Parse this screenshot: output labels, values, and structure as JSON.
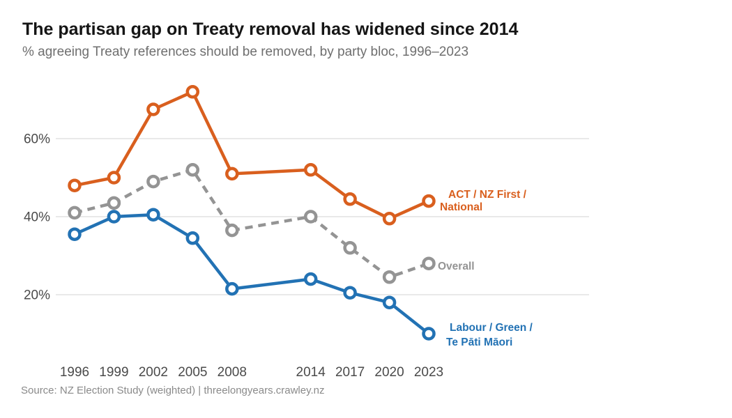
{
  "figure": {
    "title": "The partisan gap on Treaty removal has widened since 2014",
    "subtitle": "% agreeing Treaty references should be removed, by party bloc, 1996–2023",
    "source": "Source: NZ Election Study (weighted) | threelongyears.crawley.nz"
  },
  "colors": {
    "act_bloc": "#D95F1E",
    "overall": "#949494",
    "labour_bloc": "#2272B4",
    "gridline": "#E2E2E2",
    "title_text": "#151515",
    "subtitle_text": "#6E6E6E",
    "axis_text": "#4A4A4A",
    "source_text": "#8A8A8A",
    "marker_fill": "#FFFFFF"
  },
  "chart_data": {
    "type": "line",
    "title": "The partisan gap on Treaty removal has widened since 2014",
    "subtitle": "% agreeing Treaty references should be removed, by party bloc, 1996–2023",
    "source": "Source: NZ Election Study (weighted) | threelongyears.crawley.nz",
    "x": [
      1996,
      1999,
      2002,
      2005,
      2008,
      2014,
      2017,
      2020,
      2023
    ],
    "xtick_labels": [
      "1996",
      "1999",
      "2002",
      "2005",
      "2008",
      "2014",
      "2017",
      "2020",
      "2023"
    ],
    "yticks": [
      20,
      40,
      60
    ],
    "ytick_labels": [
      "20%",
      "40%",
      "60%"
    ],
    "ylim": [
      5,
      78
    ],
    "grid": "horizontal-only",
    "marker": "open-circle",
    "legend_position": "end-of-line-labels",
    "series": [
      {
        "id": "act-nzfirst-national",
        "name": "ACT / NZ First / National",
        "label_lines": [
          "ACT / NZ First /",
          "National"
        ],
        "color": "#D95F1E",
        "style": "solid",
        "values": [
          48,
          50,
          67.5,
          72,
          51,
          52,
          44.5,
          39.5,
          44
        ]
      },
      {
        "id": "overall",
        "name": "Overall",
        "label_lines": [
          "Overall"
        ],
        "color": "#949494",
        "style": "dashed",
        "values": [
          41,
          43.5,
          49,
          52,
          36.5,
          40,
          32,
          24.5,
          28
        ]
      },
      {
        "id": "labour-green-tpm",
        "name": "Labour / Green / Te Pāti Māori",
        "label_lines": [
          "Labour / Green /",
          "Te Pāti Māori"
        ],
        "color": "#2272B4",
        "style": "solid",
        "values": [
          35.5,
          40,
          40.5,
          34.5,
          21.5,
          24,
          20.5,
          18,
          10
        ]
      }
    ]
  }
}
